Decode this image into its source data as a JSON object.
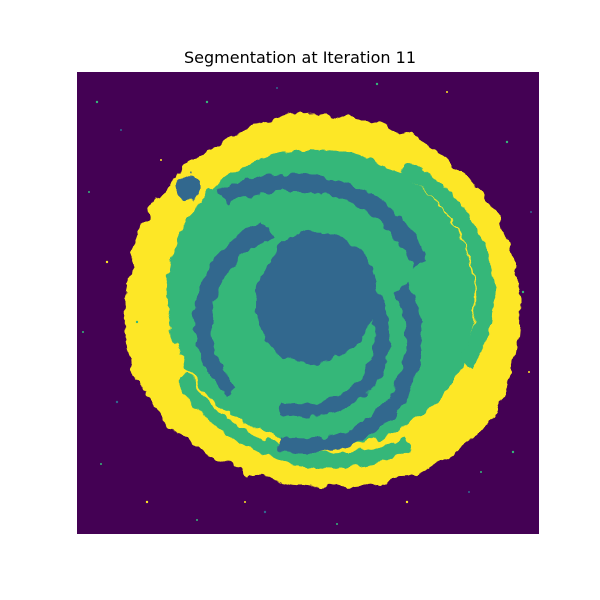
{
  "title": "Segmentation at Iteration 11",
  "segmentation": {
    "colormap": "viridis",
    "classes": [
      {
        "name": "background",
        "color": "#440154"
      },
      {
        "name": "inner-core-and-dark-arms",
        "color": "#31688e"
      },
      {
        "name": "spiral-arms",
        "color": "#35b779"
      },
      {
        "name": "outer-halo",
        "color": "#fde725"
      }
    ],
    "axes_visible": false
  }
}
